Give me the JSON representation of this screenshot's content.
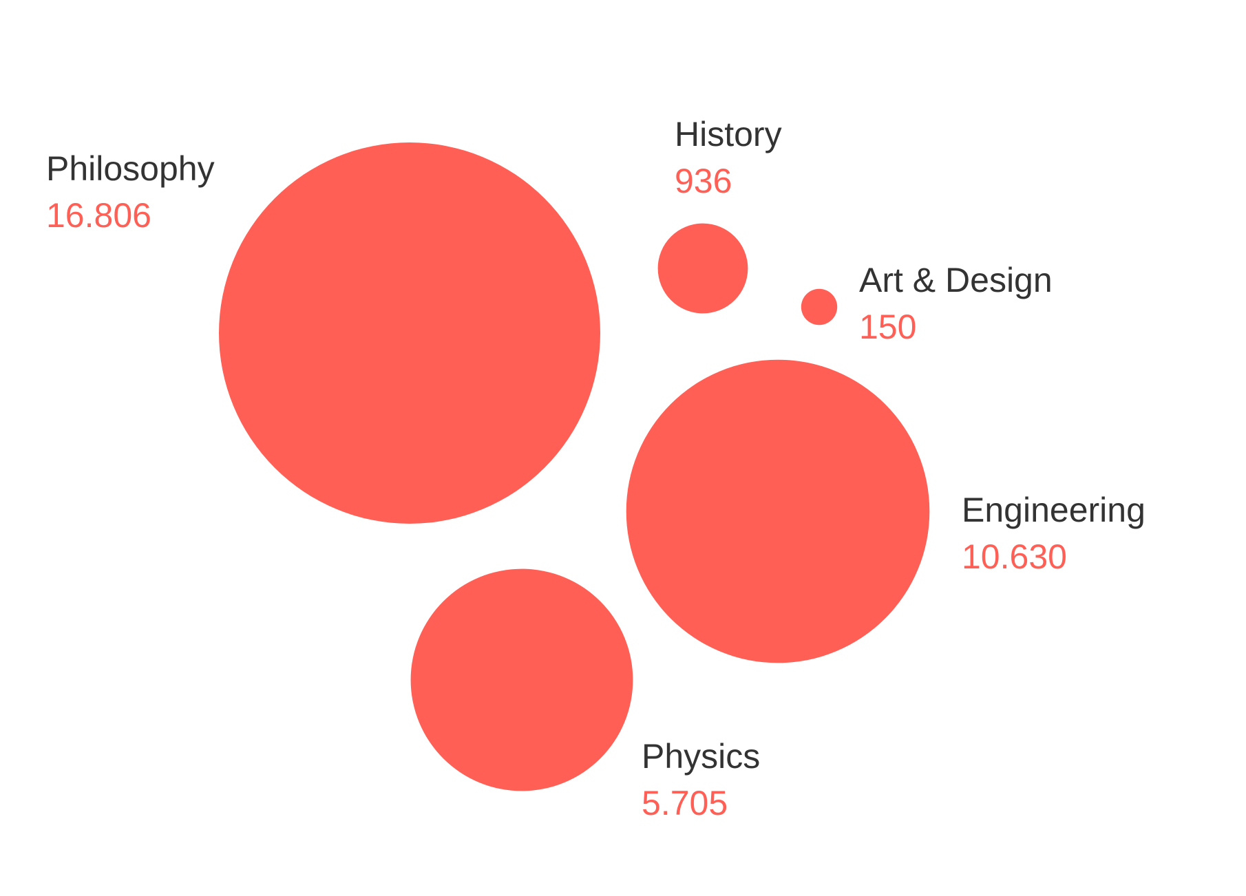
{
  "chart_data": {
    "type": "bubble",
    "bubble_color": "#FF5F55",
    "label_color": "#333333",
    "value_color": "#FF5F55",
    "series": [
      {
        "name": "Philosophy",
        "value": 16806,
        "display_value": "16.806"
      },
      {
        "name": "History",
        "value": 936,
        "display_value": "936"
      },
      {
        "name": "Art & Design",
        "value": 150,
        "display_value": "150"
      },
      {
        "name": "Engineering",
        "value": 10630,
        "display_value": "10.630"
      },
      {
        "name": "Physics",
        "value": 5705,
        "display_value": "5.705"
      }
    ]
  }
}
